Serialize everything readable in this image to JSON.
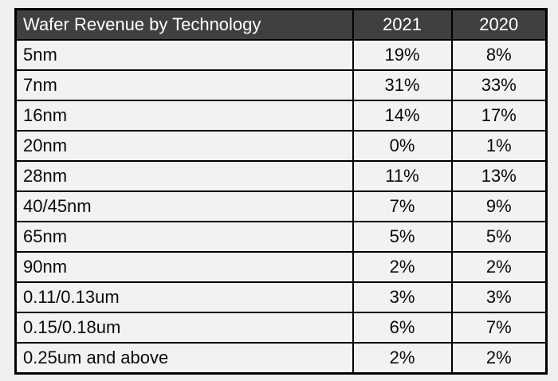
{
  "colors": {
    "page_background": "#efeff0",
    "header_background": "#404040",
    "header_text": "#ffffff",
    "row_background": "#f2f2f2",
    "row_text": "#0b0b0b",
    "border": "#000000"
  },
  "table": {
    "header": [
      "Wafer Revenue by Technology",
      "2021",
      "2020"
    ],
    "rows": [
      [
        "5nm",
        "19%",
        "8%"
      ],
      [
        "7nm",
        "31%",
        "33%"
      ],
      [
        "16nm",
        "14%",
        "17%"
      ],
      [
        "20nm",
        "0%",
        "1%"
      ],
      [
        "28nm",
        "11%",
        "13%"
      ],
      [
        "40/45nm",
        "7%",
        "9%"
      ],
      [
        "65nm",
        "5%",
        "5%"
      ],
      [
        "90nm",
        "2%",
        "2%"
      ],
      [
        "0.11/0.13um",
        "3%",
        "3%"
      ],
      [
        "0.15/0.18um",
        "6%",
        "7%"
      ],
      [
        "0.25um and above",
        "2%",
        "2%"
      ]
    ]
  },
  "chart_data": {
    "type": "table",
    "title": "Wafer Revenue by Technology",
    "columns": [
      "Wafer Revenue by Technology",
      "2021",
      "2020"
    ],
    "categories": [
      "5nm",
      "7nm",
      "16nm",
      "20nm",
      "28nm",
      "40/45nm",
      "65nm",
      "90nm",
      "0.11/0.13um",
      "0.15/0.18um",
      "0.25um and above"
    ],
    "series": [
      {
        "name": "2021",
        "values": [
          19,
          31,
          14,
          0,
          11,
          7,
          5,
          2,
          3,
          6,
          2
        ]
      },
      {
        "name": "2020",
        "values": [
          8,
          33,
          17,
          1,
          13,
          9,
          5,
          2,
          3,
          7,
          2
        ]
      }
    ],
    "value_unit": "%",
    "layout": {
      "grid": "on",
      "header_style": "dark",
      "value_alignment": "center"
    }
  }
}
